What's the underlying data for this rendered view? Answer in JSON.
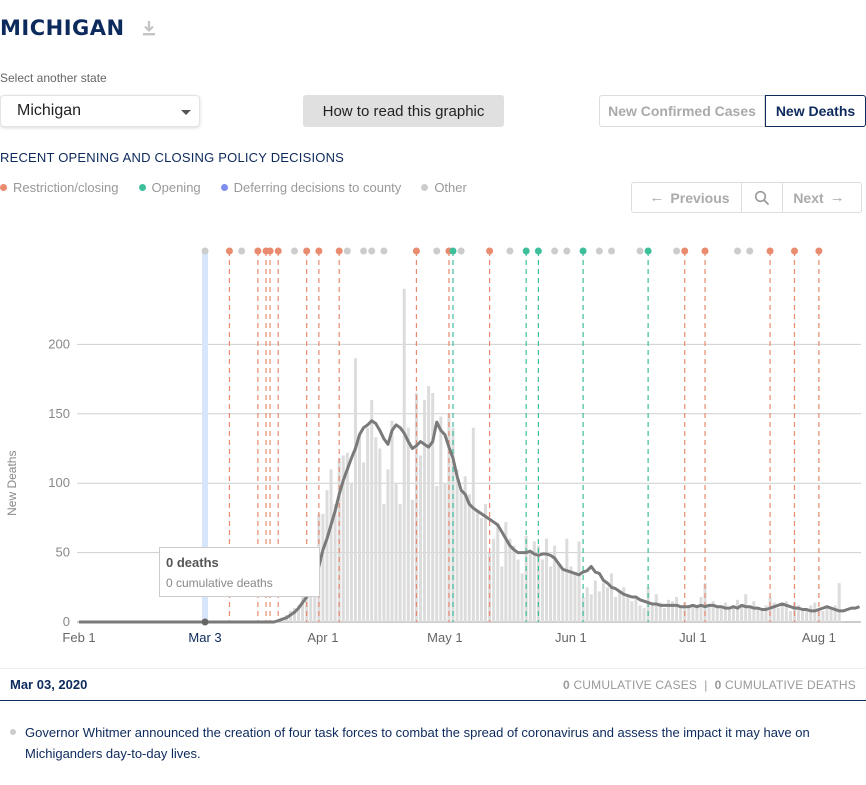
{
  "header": {
    "title": "MICHIGAN",
    "download_icon": "download-icon"
  },
  "controls": {
    "select_label": "Select another state",
    "state_value": "Michigan",
    "how_to_label": "How to read this graphic",
    "toggle": {
      "cases_label": "New Confirmed Cases",
      "deaths_label": "New Deaths",
      "active": "New Deaths"
    }
  },
  "policy": {
    "heading": "RECENT OPENING AND CLOSING POLICY DECISIONS",
    "legend": [
      {
        "label": "Restriction/closing",
        "color": "#e88b6f"
      },
      {
        "label": "Opening",
        "color": "#3dbf9c"
      },
      {
        "label": "Deferring decisions to county",
        "color": "#7f8cf0"
      },
      {
        "label": "Other",
        "color": "#cccccc"
      }
    ],
    "nav": {
      "previous_label": "Previous",
      "next_label": "Next"
    }
  },
  "chart_data": {
    "type": "bar",
    "ylabel": "New Deaths",
    "ylim": [
      0,
      270
    ],
    "yticks": [
      0,
      50,
      100,
      150,
      200
    ],
    "xticks": [
      {
        "label": "Feb 1",
        "day": 0
      },
      {
        "label": "Apr 1",
        "day": 60
      },
      {
        "label": "May 1",
        "day": 90
      },
      {
        "label": "Jun 1",
        "day": 121
      },
      {
        "label": "Jul 1",
        "day": 151
      },
      {
        "label": "Aug 1",
        "day": 182
      }
    ],
    "selected": {
      "label": "Mar 3",
      "day": 31,
      "value": 0
    },
    "bar_color": "#dcdcdc",
    "line_color": "#7a7a7a",
    "daily_deaths": [
      0,
      0,
      0,
      0,
      0,
      0,
      0,
      0,
      0,
      0,
      0,
      0,
      0,
      0,
      0,
      0,
      0,
      0,
      0,
      0,
      0,
      0,
      0,
      0,
      0,
      0,
      0,
      0,
      0,
      0,
      0,
      0,
      0,
      0,
      0,
      0,
      0,
      0,
      0,
      0,
      0,
      0,
      0,
      0,
      0,
      0,
      0,
      0,
      0,
      1,
      2,
      5,
      8,
      10,
      12,
      20,
      22,
      30,
      35,
      78,
      78,
      95,
      110,
      85,
      118,
      120,
      122,
      100,
      190,
      135,
      115,
      140,
      160,
      133,
      125,
      85,
      110,
      145,
      100,
      85,
      240,
      140,
      88,
      165,
      120,
      160,
      170,
      165,
      98,
      148,
      100,
      150,
      140,
      110,
      95,
      105,
      92,
      140,
      80,
      75,
      85,
      50,
      60,
      70,
      40,
      72,
      60,
      55,
      45,
      35,
      62,
      50,
      58,
      55,
      45,
      60,
      40,
      55,
      42,
      38,
      60,
      40,
      35,
      58,
      18,
      25,
      20,
      30,
      22,
      28,
      25,
      35,
      18,
      22,
      25,
      20,
      15,
      18,
      12,
      10,
      25,
      12,
      20,
      14,
      10,
      16,
      15,
      18,
      12,
      14,
      10,
      12,
      11,
      18,
      28,
      12,
      15,
      12,
      10,
      14,
      10,
      12,
      16,
      10,
      20,
      12,
      15,
      10,
      8,
      12,
      18,
      14,
      10,
      12,
      15,
      8,
      14,
      12,
      10,
      8,
      12,
      14,
      9,
      8,
      10,
      11,
      12,
      28
    ],
    "rolling_avg": [
      0,
      0,
      0,
      0,
      0,
      0,
      0,
      0,
      0,
      0,
      0,
      0,
      0,
      0,
      0,
      0,
      0,
      0,
      0,
      0,
      0,
      0,
      0,
      0,
      0,
      0,
      0,
      0,
      0,
      0,
      0,
      0,
      0,
      0,
      0,
      0,
      0,
      0,
      0,
      0,
      0,
      0,
      0,
      0,
      0,
      0,
      0,
      0,
      0,
      1,
      2,
      3,
      5,
      7,
      10,
      14,
      18,
      22,
      30,
      40,
      52,
      60,
      70,
      80,
      92,
      102,
      110,
      118,
      125,
      135,
      140,
      142,
      145,
      143,
      138,
      132,
      128,
      138,
      142,
      140,
      136,
      130,
      125,
      127,
      130,
      128,
      126,
      130,
      144,
      138,
      135,
      126,
      118,
      105,
      95,
      92,
      85,
      82,
      80,
      78,
      76,
      74,
      72,
      70,
      65,
      60,
      55,
      52,
      50,
      50,
      50,
      51,
      49,
      48,
      49,
      49,
      48,
      46,
      42,
      38,
      37,
      36,
      35,
      34,
      36,
      37,
      40,
      36,
      35,
      30,
      28,
      25,
      24,
      22,
      20,
      19,
      18,
      18,
      16,
      15,
      14,
      13,
      13,
      12,
      12,
      12,
      12,
      12,
      11,
      11,
      11,
      12,
      11,
      12,
      11,
      12,
      12,
      11,
      11,
      10,
      10,
      11,
      10,
      12,
      11,
      11,
      10,
      10,
      9,
      9,
      10,
      11,
      12,
      13,
      12,
      11,
      10,
      10,
      9,
      9,
      8,
      8,
      9,
      10,
      11,
      10,
      9,
      8,
      8,
      9,
      10,
      10,
      11
    ],
    "policy_markers": [
      {
        "day": 31,
        "type": "Other"
      },
      {
        "day": 37,
        "type": "Restriction/closing"
      },
      {
        "day": 40,
        "type": "Other"
      },
      {
        "day": 44,
        "type": "Restriction/closing"
      },
      {
        "day": 46,
        "type": "Restriction/closing"
      },
      {
        "day": 47,
        "type": "Restriction/closing"
      },
      {
        "day": 49,
        "type": "Restriction/closing"
      },
      {
        "day": 53,
        "type": "Other"
      },
      {
        "day": 56,
        "type": "Restriction/closing"
      },
      {
        "day": 59,
        "type": "Restriction/closing"
      },
      {
        "day": 64,
        "type": "Restriction/closing"
      },
      {
        "day": 66,
        "type": "Other"
      },
      {
        "day": 70,
        "type": "Other"
      },
      {
        "day": 72,
        "type": "Other"
      },
      {
        "day": 75,
        "type": "Other"
      },
      {
        "day": 83,
        "type": "Restriction/closing"
      },
      {
        "day": 88,
        "type": "Other"
      },
      {
        "day": 91,
        "type": "Restriction/closing"
      },
      {
        "day": 92,
        "type": "Opening"
      },
      {
        "day": 94,
        "type": "Other"
      },
      {
        "day": 101,
        "type": "Restriction/closing"
      },
      {
        "day": 106,
        "type": "Other"
      },
      {
        "day": 110,
        "type": "Opening"
      },
      {
        "day": 113,
        "type": "Opening"
      },
      {
        "day": 117,
        "type": "Other"
      },
      {
        "day": 120,
        "type": "Other"
      },
      {
        "day": 124,
        "type": "Opening"
      },
      {
        "day": 128,
        "type": "Other"
      },
      {
        "day": 131,
        "type": "Other"
      },
      {
        "day": 138,
        "type": "Other"
      },
      {
        "day": 140,
        "type": "Opening"
      },
      {
        "day": 147,
        "type": "Other"
      },
      {
        "day": 149,
        "type": "Restriction/closing"
      },
      {
        "day": 154,
        "type": "Restriction/closing"
      },
      {
        "day": 162,
        "type": "Other"
      },
      {
        "day": 165,
        "type": "Other"
      },
      {
        "day": 170,
        "type": "Restriction/closing"
      },
      {
        "day": 176,
        "type": "Restriction/closing"
      },
      {
        "day": 182,
        "type": "Restriction/closing"
      }
    ]
  },
  "tooltip": {
    "deaths": "0 deaths",
    "cumulative": "0 cumulative deaths"
  },
  "footer": {
    "date": "Mar 03, 2020",
    "cases_count": "0",
    "cases_label": "CUMULATIVE CASES",
    "separator": "|",
    "deaths_count": "0",
    "deaths_label": "CUMULATIVE DEATHS"
  },
  "note": "Governor Whitmer announced the creation of four task forces to combat the spread of coronavirus and assess the impact it may have on Michiganders day-to-day lives."
}
